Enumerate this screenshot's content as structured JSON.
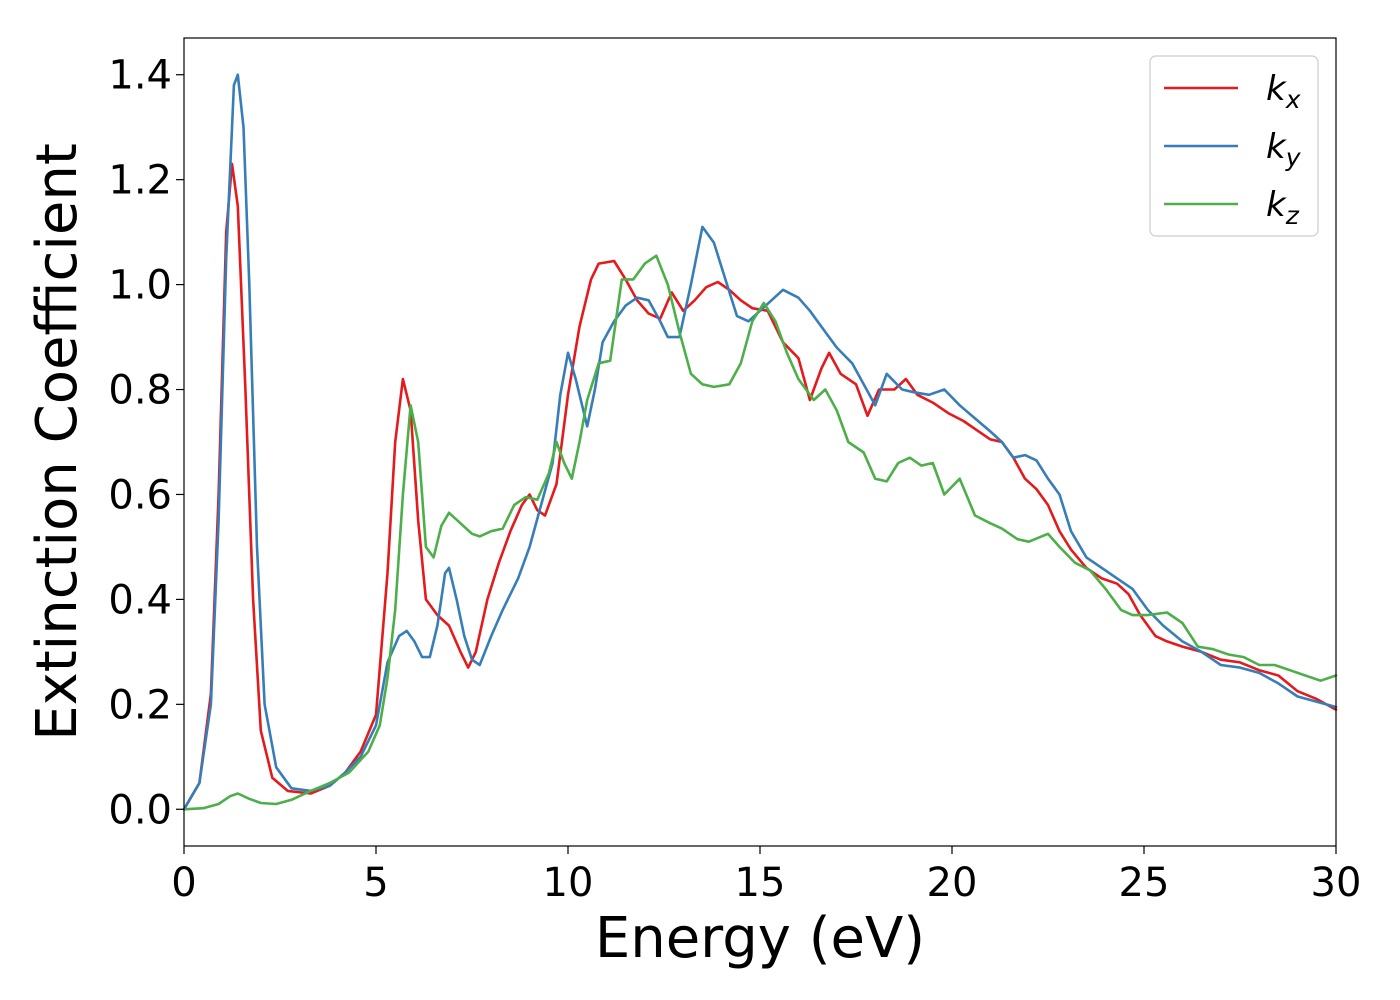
{
  "chart_data": {
    "type": "line",
    "xlabel": "Energy (eV)",
    "ylabel": "Extinction Coefficient",
    "xlim": [
      0,
      30
    ],
    "ylim": [
      -0.07,
      1.47
    ],
    "xticks": [
      0,
      5,
      10,
      15,
      20,
      25,
      30
    ],
    "yticks": [
      0.0,
      0.2,
      0.4,
      0.6,
      0.8,
      1.0,
      1.2,
      1.4
    ],
    "grid": false,
    "legend_position": "top-right",
    "series": [
      {
        "name": "k",
        "subscript": "x",
        "color": "#e41a1c",
        "points": [
          [
            0,
            0
          ],
          [
            0.4,
            0.05
          ],
          [
            0.7,
            0.22
          ],
          [
            0.9,
            0.6
          ],
          [
            1.1,
            1.1
          ],
          [
            1.25,
            1.23
          ],
          [
            1.4,
            1.15
          ],
          [
            1.6,
            0.8
          ],
          [
            1.8,
            0.4
          ],
          [
            2.0,
            0.15
          ],
          [
            2.3,
            0.06
          ],
          [
            2.7,
            0.035
          ],
          [
            3.3,
            0.03
          ],
          [
            3.8,
            0.045
          ],
          [
            4.2,
            0.07
          ],
          [
            4.6,
            0.11
          ],
          [
            5.0,
            0.18
          ],
          [
            5.3,
            0.45
          ],
          [
            5.5,
            0.7
          ],
          [
            5.7,
            0.82
          ],
          [
            5.9,
            0.76
          ],
          [
            6.1,
            0.55
          ],
          [
            6.3,
            0.4
          ],
          [
            6.6,
            0.37
          ],
          [
            6.9,
            0.35
          ],
          [
            7.2,
            0.3
          ],
          [
            7.4,
            0.27
          ],
          [
            7.6,
            0.3
          ],
          [
            7.9,
            0.4
          ],
          [
            8.2,
            0.47
          ],
          [
            8.5,
            0.53
          ],
          [
            8.8,
            0.58
          ],
          [
            9.0,
            0.6
          ],
          [
            9.2,
            0.57
          ],
          [
            9.4,
            0.56
          ],
          [
            9.7,
            0.62
          ],
          [
            10.0,
            0.79
          ],
          [
            10.3,
            0.92
          ],
          [
            10.6,
            1.01
          ],
          [
            10.8,
            1.04
          ],
          [
            11.2,
            1.045
          ],
          [
            11.5,
            1.01
          ],
          [
            11.8,
            0.97
          ],
          [
            12.1,
            0.945
          ],
          [
            12.4,
            0.935
          ],
          [
            12.7,
            0.985
          ],
          [
            13.0,
            0.95
          ],
          [
            13.3,
            0.97
          ],
          [
            13.6,
            0.995
          ],
          [
            13.9,
            1.005
          ],
          [
            14.2,
            0.99
          ],
          [
            14.5,
            0.97
          ],
          [
            14.8,
            0.955
          ],
          [
            15.2,
            0.95
          ],
          [
            15.6,
            0.89
          ],
          [
            16.0,
            0.86
          ],
          [
            16.3,
            0.78
          ],
          [
            16.6,
            0.84
          ],
          [
            16.8,
            0.87
          ],
          [
            17.1,
            0.83
          ],
          [
            17.5,
            0.81
          ],
          [
            17.8,
            0.75
          ],
          [
            18.1,
            0.8
          ],
          [
            18.5,
            0.8
          ],
          [
            18.8,
            0.82
          ],
          [
            19.1,
            0.79
          ],
          [
            19.5,
            0.775
          ],
          [
            19.9,
            0.755
          ],
          [
            20.3,
            0.74
          ],
          [
            20.6,
            0.725
          ],
          [
            21.0,
            0.705
          ],
          [
            21.3,
            0.7
          ],
          [
            21.6,
            0.67
          ],
          [
            21.9,
            0.63
          ],
          [
            22.2,
            0.61
          ],
          [
            22.5,
            0.58
          ],
          [
            22.8,
            0.53
          ],
          [
            23.1,
            0.495
          ],
          [
            23.5,
            0.46
          ],
          [
            23.9,
            0.44
          ],
          [
            24.3,
            0.43
          ],
          [
            24.6,
            0.41
          ],
          [
            24.9,
            0.37
          ],
          [
            25.3,
            0.33
          ],
          [
            25.6,
            0.32
          ],
          [
            26.0,
            0.31
          ],
          [
            26.5,
            0.3
          ],
          [
            27.0,
            0.285
          ],
          [
            27.5,
            0.28
          ],
          [
            28.0,
            0.265
          ],
          [
            28.5,
            0.255
          ],
          [
            29.0,
            0.225
          ],
          [
            29.5,
            0.21
          ],
          [
            30.0,
            0.19
          ]
        ]
      },
      {
        "name": "k",
        "subscript": "y",
        "color": "#377eb8",
        "points": [
          [
            0,
            0
          ],
          [
            0.4,
            0.05
          ],
          [
            0.7,
            0.2
          ],
          [
            0.9,
            0.55
          ],
          [
            1.1,
            1.05
          ],
          [
            1.3,
            1.38
          ],
          [
            1.4,
            1.4
          ],
          [
            1.55,
            1.3
          ],
          [
            1.7,
            1.0
          ],
          [
            1.9,
            0.5
          ],
          [
            2.1,
            0.2
          ],
          [
            2.4,
            0.08
          ],
          [
            2.8,
            0.04
          ],
          [
            3.3,
            0.035
          ],
          [
            3.8,
            0.045
          ],
          [
            4.2,
            0.07
          ],
          [
            4.6,
            0.1
          ],
          [
            5.0,
            0.16
          ],
          [
            5.3,
            0.28
          ],
          [
            5.6,
            0.33
          ],
          [
            5.8,
            0.34
          ],
          [
            6.0,
            0.32
          ],
          [
            6.2,
            0.29
          ],
          [
            6.4,
            0.29
          ],
          [
            6.6,
            0.35
          ],
          [
            6.8,
            0.45
          ],
          [
            6.9,
            0.46
          ],
          [
            7.1,
            0.4
          ],
          [
            7.3,
            0.33
          ],
          [
            7.5,
            0.285
          ],
          [
            7.7,
            0.275
          ],
          [
            8.0,
            0.33
          ],
          [
            8.3,
            0.38
          ],
          [
            8.7,
            0.44
          ],
          [
            9.0,
            0.5
          ],
          [
            9.3,
            0.58
          ],
          [
            9.6,
            0.66
          ],
          [
            9.8,
            0.79
          ],
          [
            10.0,
            0.87
          ],
          [
            10.2,
            0.82
          ],
          [
            10.5,
            0.73
          ],
          [
            10.7,
            0.8
          ],
          [
            10.9,
            0.89
          ],
          [
            11.2,
            0.93
          ],
          [
            11.5,
            0.96
          ],
          [
            11.8,
            0.975
          ],
          [
            12.1,
            0.97
          ],
          [
            12.4,
            0.93
          ],
          [
            12.6,
            0.9
          ],
          [
            12.9,
            0.9
          ],
          [
            13.2,
            1.0
          ],
          [
            13.5,
            1.11
          ],
          [
            13.8,
            1.08
          ],
          [
            14.1,
            1.01
          ],
          [
            14.4,
            0.94
          ],
          [
            14.7,
            0.93
          ],
          [
            15.0,
            0.95
          ],
          [
            15.3,
            0.97
          ],
          [
            15.6,
            0.99
          ],
          [
            16.0,
            0.975
          ],
          [
            16.3,
            0.95
          ],
          [
            16.6,
            0.92
          ],
          [
            17.0,
            0.88
          ],
          [
            17.4,
            0.85
          ],
          [
            17.7,
            0.81
          ],
          [
            18.0,
            0.77
          ],
          [
            18.3,
            0.83
          ],
          [
            18.7,
            0.8
          ],
          [
            19.0,
            0.795
          ],
          [
            19.4,
            0.79
          ],
          [
            19.8,
            0.8
          ],
          [
            20.2,
            0.77
          ],
          [
            20.6,
            0.745
          ],
          [
            21.0,
            0.72
          ],
          [
            21.3,
            0.7
          ],
          [
            21.6,
            0.67
          ],
          [
            21.9,
            0.675
          ],
          [
            22.2,
            0.665
          ],
          [
            22.5,
            0.63
          ],
          [
            22.8,
            0.6
          ],
          [
            23.1,
            0.53
          ],
          [
            23.5,
            0.48
          ],
          [
            23.9,
            0.46
          ],
          [
            24.3,
            0.44
          ],
          [
            24.7,
            0.42
          ],
          [
            25.1,
            0.38
          ],
          [
            25.5,
            0.35
          ],
          [
            26.0,
            0.32
          ],
          [
            26.5,
            0.3
          ],
          [
            27.0,
            0.275
          ],
          [
            27.5,
            0.27
          ],
          [
            28.0,
            0.26
          ],
          [
            28.5,
            0.24
          ],
          [
            29.0,
            0.215
          ],
          [
            29.5,
            0.205
          ],
          [
            30.0,
            0.195
          ]
        ]
      },
      {
        "name": "k",
        "subscript": "z",
        "color": "#4daf4a",
        "points": [
          [
            0,
            0
          ],
          [
            0.5,
            0.002
          ],
          [
            0.9,
            0.01
          ],
          [
            1.2,
            0.025
          ],
          [
            1.4,
            0.03
          ],
          [
            1.7,
            0.02
          ],
          [
            2.0,
            0.012
          ],
          [
            2.4,
            0.01
          ],
          [
            2.8,
            0.018
          ],
          [
            3.3,
            0.035
          ],
          [
            3.8,
            0.05
          ],
          [
            4.3,
            0.07
          ],
          [
            4.8,
            0.11
          ],
          [
            5.1,
            0.16
          ],
          [
            5.3,
            0.25
          ],
          [
            5.5,
            0.38
          ],
          [
            5.7,
            0.6
          ],
          [
            5.9,
            0.77
          ],
          [
            6.1,
            0.7
          ],
          [
            6.3,
            0.5
          ],
          [
            6.5,
            0.48
          ],
          [
            6.7,
            0.54
          ],
          [
            6.9,
            0.565
          ],
          [
            7.2,
            0.545
          ],
          [
            7.5,
            0.525
          ],
          [
            7.7,
            0.52
          ],
          [
            8.0,
            0.53
          ],
          [
            8.3,
            0.535
          ],
          [
            8.6,
            0.58
          ],
          [
            8.9,
            0.595
          ],
          [
            9.2,
            0.59
          ],
          [
            9.5,
            0.64
          ],
          [
            9.7,
            0.7
          ],
          [
            9.9,
            0.66
          ],
          [
            10.1,
            0.63
          ],
          [
            10.3,
            0.7
          ],
          [
            10.5,
            0.78
          ],
          [
            10.8,
            0.85
          ],
          [
            11.1,
            0.855
          ],
          [
            11.4,
            1.01
          ],
          [
            11.7,
            1.01
          ],
          [
            12.0,
            1.04
          ],
          [
            12.3,
            1.055
          ],
          [
            12.6,
            1.0
          ],
          [
            12.9,
            0.91
          ],
          [
            13.2,
            0.83
          ],
          [
            13.5,
            0.81
          ],
          [
            13.8,
            0.805
          ],
          [
            14.2,
            0.81
          ],
          [
            14.5,
            0.85
          ],
          [
            14.8,
            0.93
          ],
          [
            15.1,
            0.965
          ],
          [
            15.4,
            0.93
          ],
          [
            15.7,
            0.87
          ],
          [
            16.0,
            0.82
          ],
          [
            16.4,
            0.78
          ],
          [
            16.7,
            0.8
          ],
          [
            17.0,
            0.76
          ],
          [
            17.3,
            0.7
          ],
          [
            17.7,
            0.68
          ],
          [
            18.0,
            0.63
          ],
          [
            18.3,
            0.625
          ],
          [
            18.6,
            0.66
          ],
          [
            18.9,
            0.67
          ],
          [
            19.2,
            0.655
          ],
          [
            19.5,
            0.66
          ],
          [
            19.8,
            0.6
          ],
          [
            20.2,
            0.63
          ],
          [
            20.6,
            0.56
          ],
          [
            21.0,
            0.545
          ],
          [
            21.3,
            0.535
          ],
          [
            21.7,
            0.515
          ],
          [
            22.0,
            0.51
          ],
          [
            22.5,
            0.525
          ],
          [
            22.8,
            0.5
          ],
          [
            23.2,
            0.47
          ],
          [
            23.6,
            0.455
          ],
          [
            24.0,
            0.42
          ],
          [
            24.4,
            0.38
          ],
          [
            24.7,
            0.37
          ],
          [
            25.1,
            0.37
          ],
          [
            25.6,
            0.375
          ],
          [
            26.0,
            0.355
          ],
          [
            26.4,
            0.31
          ],
          [
            26.8,
            0.305
          ],
          [
            27.2,
            0.295
          ],
          [
            27.6,
            0.29
          ],
          [
            28.0,
            0.275
          ],
          [
            28.4,
            0.275
          ],
          [
            28.8,
            0.265
          ],
          [
            29.2,
            0.255
          ],
          [
            29.6,
            0.245
          ],
          [
            30.0,
            0.255
          ]
        ]
      }
    ]
  }
}
